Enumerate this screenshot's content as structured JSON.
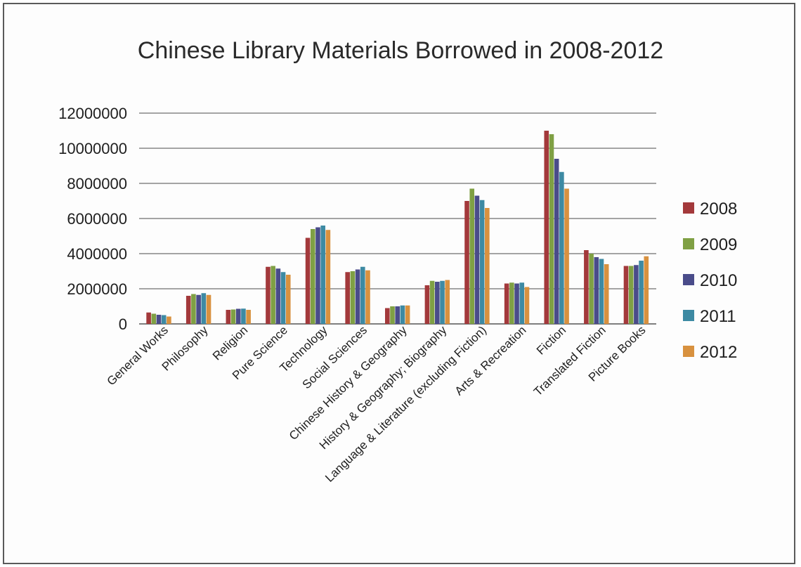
{
  "chart_data": {
    "type": "bar",
    "title": "Chinese Library Materials Borrowed in 2008-2012",
    "xlabel": "",
    "ylabel": "",
    "ylim": [
      0,
      12000000
    ],
    "yticks": [
      0,
      2000000,
      4000000,
      6000000,
      8000000,
      10000000,
      12000000
    ],
    "ytick_labels": [
      "0",
      "2000000",
      "4000000",
      "6000000",
      "8000000",
      "10000000",
      "12000000"
    ],
    "grid": true,
    "legend_position": "right",
    "categories": [
      "General Works",
      "Philosophy",
      "Religion",
      "Pure Science",
      "Technology",
      "Social Sciences",
      "Chinese History & Geography",
      "History & Geography; Biography",
      "Language & Literature (excluding Fiction)",
      "Arts & Recreation",
      "Fiction",
      "Translated Fiction",
      "Picture Books"
    ],
    "series": [
      {
        "name": "2008",
        "color": "#a3393b",
        "values": [
          650000,
          1600000,
          800000,
          3250000,
          4900000,
          2950000,
          900000,
          2200000,
          7000000,
          2300000,
          11000000,
          4200000,
          3300000
        ]
      },
      {
        "name": "2009",
        "color": "#7fa044",
        "values": [
          580000,
          1700000,
          820000,
          3300000,
          5400000,
          3000000,
          1000000,
          2450000,
          7700000,
          2350000,
          10800000,
          4000000,
          3300000
        ]
      },
      {
        "name": "2010",
        "color": "#4a4c8a",
        "values": [
          520000,
          1650000,
          860000,
          3150000,
          5500000,
          3100000,
          1000000,
          2400000,
          7300000,
          2300000,
          9400000,
          3800000,
          3350000
        ]
      },
      {
        "name": "2011",
        "color": "#3d8aa3",
        "values": [
          500000,
          1750000,
          870000,
          2950000,
          5600000,
          3250000,
          1050000,
          2450000,
          7050000,
          2350000,
          8650000,
          3700000,
          3600000
        ]
      },
      {
        "name": "2012",
        "color": "#d8913f",
        "values": [
          420000,
          1650000,
          800000,
          2800000,
          5350000,
          3050000,
          1050000,
          2500000,
          6600000,
          2100000,
          7700000,
          3400000,
          3850000
        ]
      }
    ]
  }
}
